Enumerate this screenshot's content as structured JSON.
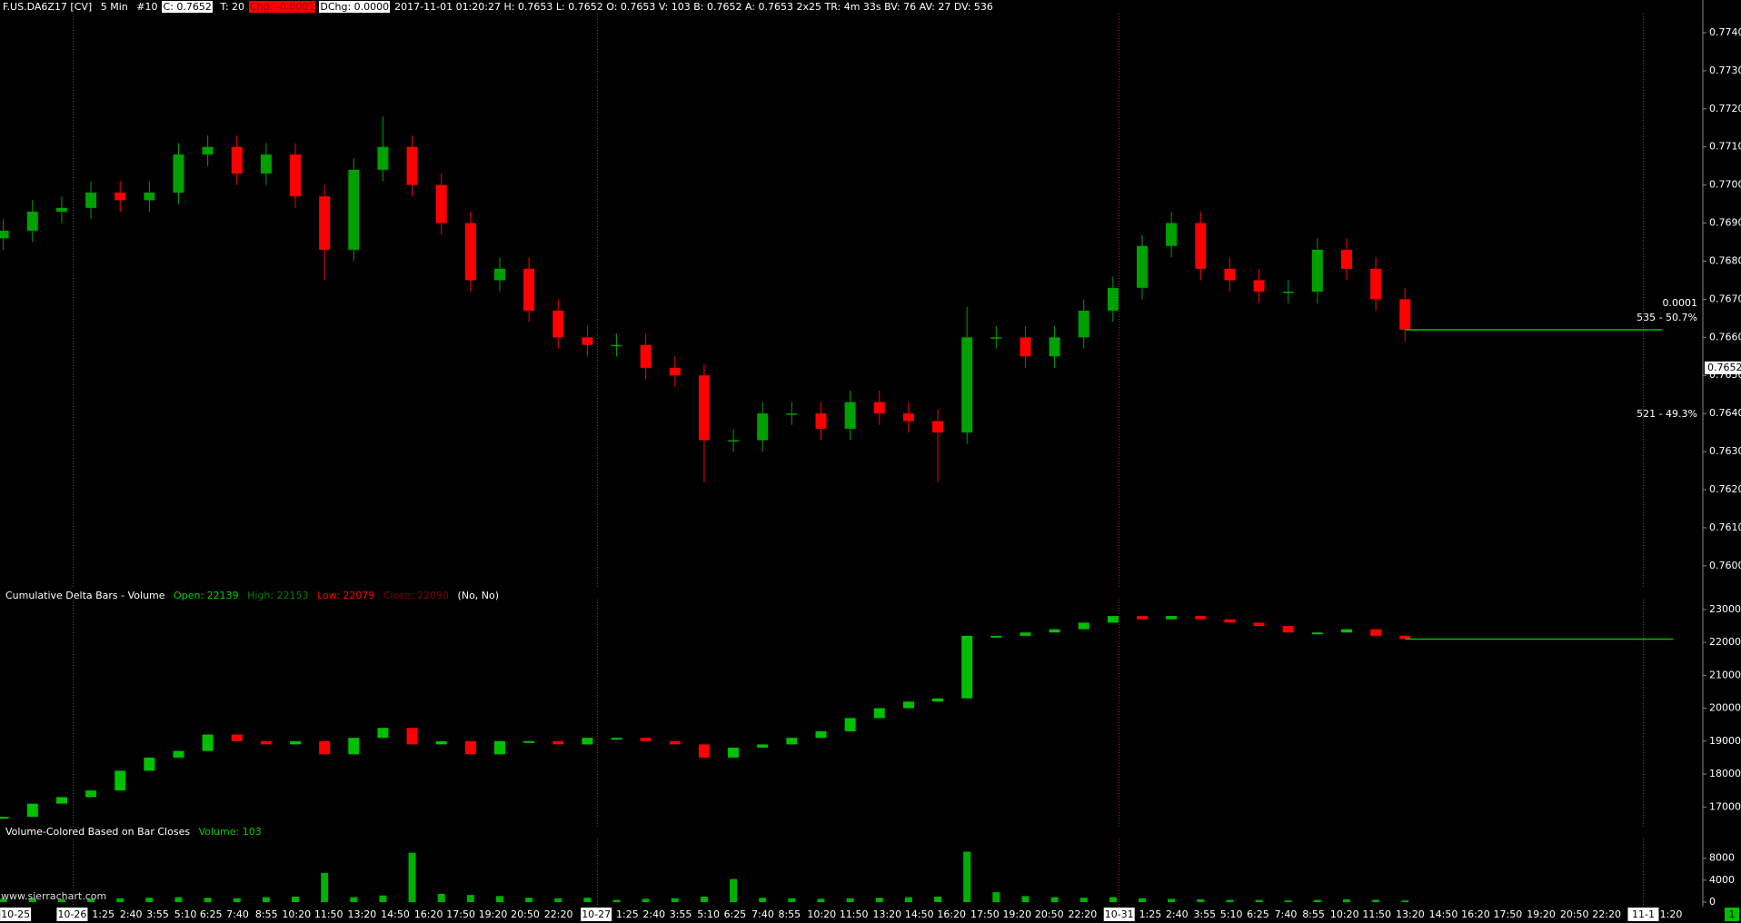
{
  "header": {
    "symbol": "F.US.DA6Z17 [CV]",
    "interval": "5 Min",
    "chart_no": "#10",
    "close": "C: 0.7652",
    "trades": "T: 20",
    "change": "Chg: -0.0001",
    "daily_change": "DChg: 0.0000",
    "info": "2017-11-01 01:20:27 H: 0.7653 L: 0.7652 O: 0.7653 V: 103 B: 0.7652 A: 0.7653 2x25 TR: 4m 33s BV: 76 AV: 27 DV: 536"
  },
  "chart_data": [
    {
      "type": "candlestick",
      "up_color": "#00a000",
      "down_color": "#ff0000",
      "open": [
        0.7686,
        0.7688,
        0.7693,
        0.7694,
        0.7698,
        0.7696,
        0.7698,
        0.7708,
        0.771,
        0.7703,
        0.7708,
        0.7697,
        0.7683,
        0.7704,
        0.771,
        0.77,
        0.769,
        0.7675,
        0.7678,
        0.7667,
        0.766,
        0.7658,
        0.7658,
        0.7652,
        0.765,
        0.7633,
        0.7633,
        0.764,
        0.764,
        0.7636,
        0.7643,
        0.764,
        0.7638,
        0.7635,
        0.766,
        0.766,
        0.7655,
        0.766,
        0.7667,
        0.7673,
        0.7684,
        0.769,
        0.7678,
        0.7675,
        0.7672,
        0.7672,
        0.7683,
        0.7678,
        0.767
      ],
      "high": [
        0.7691,
        0.7696,
        0.7697,
        0.7701,
        0.7701,
        0.7701,
        0.7711,
        0.7713,
        0.7713,
        0.7711,
        0.7711,
        0.77,
        0.7707,
        0.7718,
        0.7713,
        0.7703,
        0.7693,
        0.7681,
        0.7681,
        0.767,
        0.7663,
        0.7661,
        0.7661,
        0.7655,
        0.7653,
        0.7636,
        0.7643,
        0.7643,
        0.7643,
        0.7646,
        0.7646,
        0.7643,
        0.7641,
        0.7668,
        0.7663,
        0.7663,
        0.7663,
        0.767,
        0.7676,
        0.7687,
        0.7693,
        0.7693,
        0.7681,
        0.7678,
        0.7675,
        0.7686,
        0.7686,
        0.7681,
        0.7673
      ],
      "low": [
        0.7683,
        0.7685,
        0.769,
        0.7691,
        0.7693,
        0.7693,
        0.7695,
        0.7705,
        0.77,
        0.77,
        0.7694,
        0.7675,
        0.768,
        0.7701,
        0.7697,
        0.7687,
        0.7672,
        0.7672,
        0.7664,
        0.7657,
        0.7655,
        0.7655,
        0.7649,
        0.7647,
        0.7622,
        0.763,
        0.763,
        0.7637,
        0.7633,
        0.7633,
        0.7637,
        0.7635,
        0.7622,
        0.7632,
        0.7657,
        0.7652,
        0.7652,
        0.7657,
        0.7664,
        0.767,
        0.7681,
        0.7675,
        0.7672,
        0.7669,
        0.7669,
        0.7669,
        0.7675,
        0.7667,
        0.7659
      ],
      "close": [
        0.7688,
        0.7693,
        0.7694,
        0.7698,
        0.7696,
        0.7698,
        0.7708,
        0.771,
        0.7703,
        0.7708,
        0.7697,
        0.7683,
        0.7704,
        0.771,
        0.77,
        0.769,
        0.7675,
        0.7678,
        0.7667,
        0.766,
        0.7658,
        0.7658,
        0.7652,
        0.765,
        0.7633,
        0.7633,
        0.764,
        0.764,
        0.7636,
        0.7643,
        0.764,
        0.7638,
        0.7635,
        0.766,
        0.766,
        0.7655,
        0.766,
        0.7667,
        0.7673,
        0.7684,
        0.769,
        0.7678,
        0.7675,
        0.7672,
        0.7672,
        0.7683,
        0.7678,
        0.767,
        0.7662
      ],
      "ylim": [
        0.7594,
        0.7745
      ],
      "yticks": [
        {
          "value": 0.774,
          "label": "0.7740"
        },
        {
          "value": 0.773,
          "label": "0.7730"
        },
        {
          "value": 0.772,
          "label": "0.7720"
        },
        {
          "value": 0.771,
          "label": "0.7710"
        },
        {
          "value": 0.77,
          "label": "0.7700"
        },
        {
          "value": 0.769,
          "label": "0.7690"
        },
        {
          "value": 0.768,
          "label": "0.7680"
        },
        {
          "value": 0.767,
          "label": "0.7670"
        },
        {
          "value": 0.766,
          "label": "0.7660"
        },
        {
          "value": 0.765,
          "label": "0.7650"
        },
        {
          "value": 0.764,
          "label": "0.7640"
        },
        {
          "value": 0.763,
          "label": "0.7630"
        },
        {
          "value": 0.762,
          "label": "0.7620"
        },
        {
          "value": 0.761,
          "label": "0.7610"
        },
        {
          "value": 0.76,
          "label": "0.7600"
        }
      ],
      "last_price": {
        "value": 0.7652,
        "label": "0.7652"
      },
      "annotations": [
        "0.0001",
        "535 - 50.7%",
        "521 - 49.3%"
      ]
    },
    {
      "type": "delta-bars",
      "title": "Cumulative Delta Bars - Volume",
      "stats": [
        "Open: 22139",
        "High: 22153",
        "Low: 22079",
        "Close: 22090",
        "(No, No)"
      ],
      "up_color": "#00c000",
      "down_color": "#ff0000",
      "values": [
        16700,
        17100,
        17300,
        17500,
        18100,
        18500,
        18700,
        19200,
        19000,
        18900,
        19000,
        18600,
        19100,
        19400,
        18900,
        19000,
        18600,
        19000,
        19000,
        18900,
        19100,
        19100,
        19000,
        18900,
        18500,
        18800,
        18900,
        19100,
        19300,
        19700,
        20000,
        20200,
        20300,
        22200,
        22200,
        22300,
        22400,
        22600,
        22800,
        22700,
        22800,
        22700,
        22600,
        22500,
        22300,
        22300,
        22400,
        22200,
        22100
      ],
      "ylim": [
        16400,
        23300
      ],
      "yticks": [
        23000,
        22000,
        21000,
        20000,
        19000,
        18000,
        17000
      ]
    },
    {
      "type": "volume",
      "title": "Volume-Colored Based on Bar Closes",
      "stats": [
        "Volume: 103"
      ],
      "color": "#00b000",
      "values": [
        600,
        700,
        500,
        600,
        700,
        800,
        900,
        800,
        700,
        900,
        1000,
        5300,
        900,
        1200,
        9000,
        1500,
        1300,
        1100,
        800,
        700,
        800,
        400,
        600,
        700,
        1000,
        4200,
        800,
        700,
        600,
        700,
        800,
        900,
        1000,
        9200,
        1800,
        1100,
        900,
        800,
        900,
        700,
        600,
        500,
        400,
        400,
        300,
        400,
        500,
        400,
        300
      ],
      "ylim": [
        0,
        11600
      ],
      "yticks": [
        8000,
        4000,
        0
      ]
    }
  ],
  "time_axis": {
    "labels": [
      "10-25",
      "10-26",
      "1:25",
      "2:40",
      "3:55",
      "5:10",
      "6:25",
      "7:40",
      "8:55",
      "10:20",
      "11:50",
      "13:20",
      "14:50",
      "16:20",
      "17:50",
      "19:20",
      "20:50",
      "22:20",
      "10-27",
      "1:25",
      "2:40",
      "3:55",
      "5:10",
      "6:25",
      "7:40",
      "8:55",
      "10:20",
      "11:50",
      "13:20",
      "14:50",
      "16:20",
      "17:50",
      "19:20",
      "20:50",
      "22:20",
      "10-31",
      "1:25",
      "2:40",
      "3:55",
      "5:10",
      "6:25",
      "7:40",
      "8:55",
      "10:20",
      "11:50",
      "13:20",
      "14:50",
      "16:20",
      "17:50",
      "19:20",
      "20:50",
      "22:20",
      "11-1",
      "1:20"
    ]
  },
  "footer": {
    "site": "www.sierrachart.com",
    "badge": "1"
  }
}
